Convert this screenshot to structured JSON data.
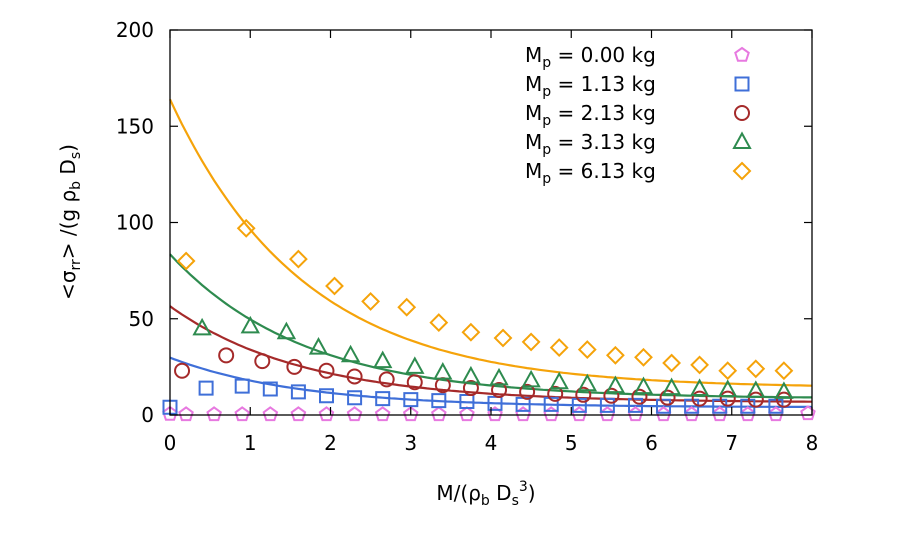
{
  "chart_data": {
    "type": "scatter",
    "title": "",
    "xlabel": {
      "prefix": "M/(ρ",
      "sub1": "b",
      "mid": " D",
      "sub2": "s",
      "sup": "3",
      "suffix": ")"
    },
    "ylabel": {
      "prefix": "<σ",
      "sub1": "rr",
      "mid": "> /(g ρ",
      "sub2": "b",
      "mid2": " D",
      "sub3": "s",
      "suffix": ")"
    },
    "xlim": [
      0,
      8
    ],
    "ylim": [
      0,
      200
    ],
    "xticks": [
      "0",
      "1",
      "2",
      "3",
      "4",
      "5",
      "6",
      "7",
      "8"
    ],
    "yticks": [
      "0",
      "50",
      "100",
      "150",
      "200"
    ],
    "legend_position": "top-right",
    "series": [
      {
        "name": "M",
        "name_sub": "p",
        "name_value": " = 0.00 kg",
        "marker": "pentagon",
        "color": "#e779e0",
        "x": [
          0.0,
          0.2,
          0.55,
          0.9,
          1.25,
          1.6,
          1.95,
          2.3,
          2.65,
          3.0,
          3.35,
          3.7,
          4.05,
          4.4,
          4.75,
          5.1,
          5.45,
          5.8,
          6.15,
          6.5,
          6.85,
          7.2,
          7.55,
          7.95
        ],
        "y": [
          0.5,
          0.3,
          0.3,
          0.3,
          0.3,
          0.3,
          0.3,
          0.3,
          0.3,
          0.3,
          0.3,
          0.3,
          0.3,
          0.3,
          0.3,
          0.3,
          0.3,
          0.3,
          0.3,
          0.3,
          0.3,
          0.3,
          0.3,
          0.8
        ],
        "fit": null
      },
      {
        "name": "M",
        "name_sub": "p",
        "name_value": " = 1.13 kg",
        "marker": "square",
        "color": "#3f6fd8",
        "x": [
          0.0,
          0.45,
          0.9,
          1.25,
          1.6,
          1.95,
          2.3,
          2.65,
          3.0,
          3.35,
          3.7,
          4.05,
          4.4,
          4.75,
          5.1,
          5.45,
          5.8,
          6.15,
          6.5,
          6.85,
          7.2,
          7.55
        ],
        "y": [
          4,
          14,
          15,
          13.5,
          12,
          10,
          9,
          8.5,
          8,
          7.5,
          7,
          6,
          5.5,
          5.5,
          5,
          5,
          5,
          4.5,
          4.5,
          4.5,
          4.5,
          4.5
        ],
        "fit": {
          "A": 25.8,
          "k": 0.62,
          "C": 4.0
        }
      },
      {
        "name": "M",
        "name_sub": "p",
        "name_value": " = 2.13 kg",
        "marker": "circle",
        "color": "#a52a2a",
        "x": [
          0.15,
          0.7,
          1.15,
          1.55,
          1.95,
          2.3,
          2.7,
          3.05,
          3.4,
          3.75,
          4.1,
          4.45,
          4.8,
          5.15,
          5.5,
          5.85,
          6.2,
          6.6,
          6.95,
          7.3,
          7.65
        ],
        "y": [
          23,
          31,
          28,
          25,
          23,
          20,
          18.5,
          17,
          15.5,
          14,
          13,
          12,
          11,
          10.5,
          10,
          9.5,
          9,
          8.5,
          8.5,
          8,
          8
        ],
        "fit": {
          "A": 50,
          "k": 0.6,
          "C": 6.5
        }
      },
      {
        "name": "M",
        "name_sub": "p",
        "name_value": " = 3.13 kg",
        "marker": "triangle",
        "color": "#2e8b4f",
        "x": [
          0.4,
          1.0,
          1.45,
          1.85,
          2.25,
          2.65,
          3.05,
          3.4,
          3.75,
          4.1,
          4.5,
          4.85,
          5.2,
          5.55,
          5.9,
          6.25,
          6.6,
          6.95,
          7.3,
          7.65
        ],
        "y": [
          45,
          46,
          43,
          35,
          31,
          28,
          25,
          22,
          20,
          19,
          18,
          17,
          16,
          15,
          14.5,
          14,
          13.5,
          13,
          12.5,
          12
        ],
        "fit": {
          "A": 75,
          "k": 0.6,
          "C": 8.5
        }
      },
      {
        "name": "M",
        "name_sub": "p",
        "name_value": " = 6.13 kg",
        "marker": "diamond",
        "color": "#f5a30a",
        "x": [
          0.2,
          0.95,
          1.6,
          2.05,
          2.5,
          2.95,
          3.35,
          3.75,
          4.15,
          4.5,
          4.85,
          5.2,
          5.55,
          5.9,
          6.25,
          6.6,
          6.95,
          7.3,
          7.65
        ],
        "y": [
          80,
          97,
          81,
          67,
          59,
          56,
          48,
          43,
          40,
          38,
          35,
          34,
          31,
          30,
          27,
          26,
          23,
          24,
          23
        ],
        "fit": {
          "A": 150,
          "k": 0.6,
          "C": 14
        }
      }
    ]
  }
}
